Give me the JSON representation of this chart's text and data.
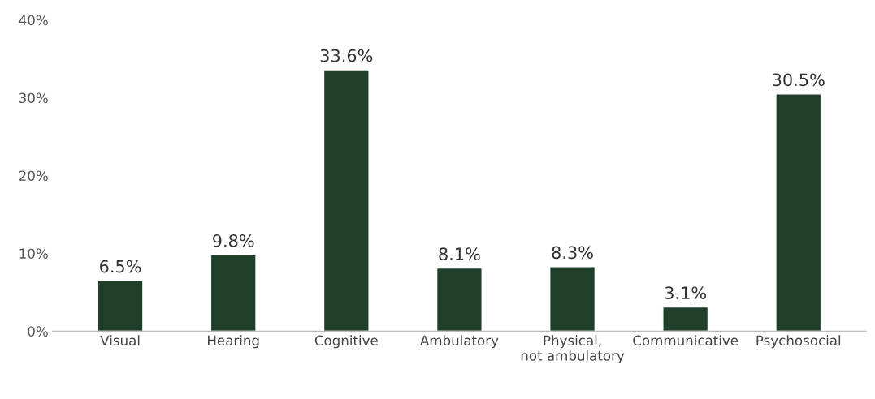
{
  "chart_data": {
    "type": "bar",
    "categories": [
      "Visual",
      "Hearing",
      "Cognitive",
      "Ambulatory",
      "Physical,\nnot ambulatory",
      "Communicative",
      "Psychosocial"
    ],
    "values": [
      6.5,
      9.8,
      33.6,
      8.1,
      8.3,
      3.1,
      30.5
    ],
    "value_labels": [
      "6.5%",
      "9.8%",
      "33.6%",
      "8.1%",
      "8.3%",
      "3.1%",
      "30.5%"
    ],
    "color": "#1f3f2a",
    "ylim": [
      0,
      40
    ],
    "yticks": [
      {
        "value": 0,
        "label": "0%"
      },
      {
        "value": 10,
        "label": "10%"
      },
      {
        "value": 20,
        "label": "20%"
      },
      {
        "value": 30,
        "label": "30%"
      },
      {
        "value": 40,
        "label": "40%"
      }
    ],
    "grid": false
  }
}
